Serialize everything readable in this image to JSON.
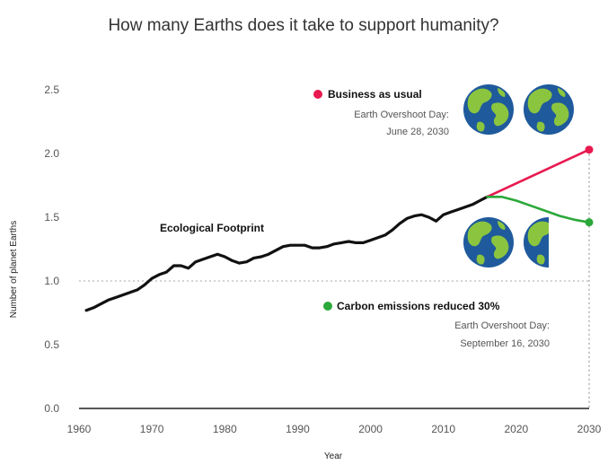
{
  "chart_data": {
    "type": "line",
    "title": "How many Earths does it take to support humanity?",
    "xlabel": "Year",
    "ylabel": "Number of planet Earths",
    "xlim": [
      1960,
      2030
    ],
    "ylim": [
      0,
      2.5
    ],
    "x_ticks": [
      "1960",
      "1970",
      "1980",
      "1990",
      "2000",
      "2010",
      "2020",
      "2030"
    ],
    "y_ticks": [
      "0.0",
      "0.5",
      "1.0",
      "1.5",
      "2.0",
      "2.5"
    ],
    "reference_line": {
      "y": 1.0,
      "style": "dotted"
    },
    "series": [
      {
        "name": "Ecological Footprint",
        "color": "#111111",
        "x": [
          1961,
          1962,
          1963,
          1964,
          1965,
          1966,
          1967,
          1968,
          1969,
          1970,
          1971,
          1972,
          1973,
          1974,
          1975,
          1976,
          1977,
          1978,
          1979,
          1980,
          1981,
          1982,
          1983,
          1984,
          1985,
          1986,
          1987,
          1988,
          1989,
          1990,
          1991,
          1992,
          1993,
          1994,
          1995,
          1996,
          1997,
          1998,
          1999,
          2000,
          2001,
          2002,
          2003,
          2004,
          2005,
          2006,
          2007,
          2008,
          2009,
          2010,
          2011,
          2012,
          2013,
          2014,
          2015,
          2016
        ],
        "y": [
          0.77,
          0.79,
          0.82,
          0.85,
          0.87,
          0.89,
          0.91,
          0.93,
          0.97,
          1.02,
          1.05,
          1.07,
          1.12,
          1.12,
          1.1,
          1.15,
          1.17,
          1.19,
          1.21,
          1.19,
          1.16,
          1.14,
          1.15,
          1.18,
          1.19,
          1.21,
          1.24,
          1.27,
          1.28,
          1.28,
          1.28,
          1.26,
          1.26,
          1.27,
          1.29,
          1.3,
          1.31,
          1.3,
          1.3,
          1.32,
          1.34,
          1.36,
          1.4,
          1.45,
          1.49,
          1.51,
          1.52,
          1.5,
          1.47,
          1.52,
          1.54,
          1.56,
          1.58,
          1.6,
          1.63,
          1.66
        ]
      },
      {
        "name": "Business as usual",
        "color": "#e8194f",
        "x": [
          2016,
          2030
        ],
        "y": [
          1.66,
          2.03
        ]
      },
      {
        "name": "Carbon emissions reduced 30%",
        "color": "#2aa83a",
        "x": [
          2016,
          2018,
          2020,
          2022,
          2024,
          2026,
          2028,
          2030
        ],
        "y": [
          1.66,
          1.66,
          1.63,
          1.59,
          1.55,
          1.51,
          1.48,
          1.46
        ]
      }
    ],
    "annotations": {
      "footprint_label": "Ecological Footprint",
      "bau": {
        "label": "Business as usual",
        "line1": "Earth Overshoot Day:",
        "line2": "June 28, 2030",
        "earths": 2
      },
      "reduced": {
        "label": "Carbon emissions reduced 30%",
        "line1": "Earth Overshoot Day:",
        "line2": "September 16, 2030",
        "earths": 1.5
      }
    },
    "colors": {
      "ocean": "#1f5a9c",
      "land": "#8bc53f",
      "axis": "#222222",
      "reference": "#bbbbbb"
    },
    "grid": false,
    "legend": "none"
  }
}
